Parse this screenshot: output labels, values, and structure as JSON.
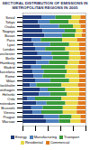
{
  "chart_data": {
    "type": "bar",
    "orientation": "horizontal",
    "stacked": true,
    "grid": false,
    "title": "SECTORAL DISTRIBUTION OF EMISSIONS IN METROPOLITAN REGIONS IN 2005",
    "categories": [
      "Seoul",
      "Tokyo",
      "Osaka",
      "Nagoya",
      "Busan",
      "Paris",
      "Lyon",
      "London",
      "Manchester",
      "Berlin",
      "Hamburg",
      "Madrid",
      "Barcelona",
      "Rome",
      "Milan",
      "Stockholm",
      "Copenhagen",
      "Helsinki",
      "Oslo",
      "Amsterdam",
      "Brussels",
      "Vienna",
      "Prague",
      "Warsaw"
    ],
    "series": [
      {
        "name": "Energy",
        "color": "#1f3a7a",
        "values": [
          30,
          25,
          28,
          32,
          35,
          15,
          18,
          20,
          24,
          30,
          22,
          14,
          16,
          18,
          20,
          12,
          28,
          26,
          8,
          22,
          14,
          16,
          34,
          38
        ]
      },
      {
        "name": "Manufacturing",
        "color": "#4f81bd",
        "values": [
          22,
          18,
          30,
          35,
          28,
          14,
          26,
          16,
          22,
          18,
          20,
          16,
          18,
          14,
          24,
          10,
          12,
          18,
          12,
          16,
          18,
          14,
          24,
          20
        ]
      },
      {
        "name": "Transport",
        "color": "#3a9a3a",
        "values": [
          26,
          30,
          22,
          18,
          20,
          34,
          30,
          32,
          28,
          26,
          30,
          38,
          36,
          36,
          30,
          40,
          28,
          26,
          42,
          30,
          32,
          34,
          20,
          18
        ]
      },
      {
        "name": "Residential",
        "color": "#e8d84a",
        "values": [
          14,
          17,
          12,
          10,
          11,
          24,
          16,
          22,
          17,
          18,
          18,
          20,
          18,
          22,
          16,
          26,
          22,
          20,
          26,
          20,
          22,
          22,
          14,
          16
        ]
      },
      {
        "name": "Commercial",
        "color": "#e07a20",
        "values": [
          8,
          10,
          8,
          5,
          6,
          13,
          10,
          10,
          9,
          8,
          10,
          12,
          12,
          10,
          10,
          12,
          10,
          10,
          12,
          12,
          14,
          14,
          8,
          8
        ]
      }
    ],
    "xlim": [
      0,
      100
    ],
    "xticks": [
      0,
      20,
      40,
      60,
      80,
      100
    ],
    "legend": "bottom"
  }
}
